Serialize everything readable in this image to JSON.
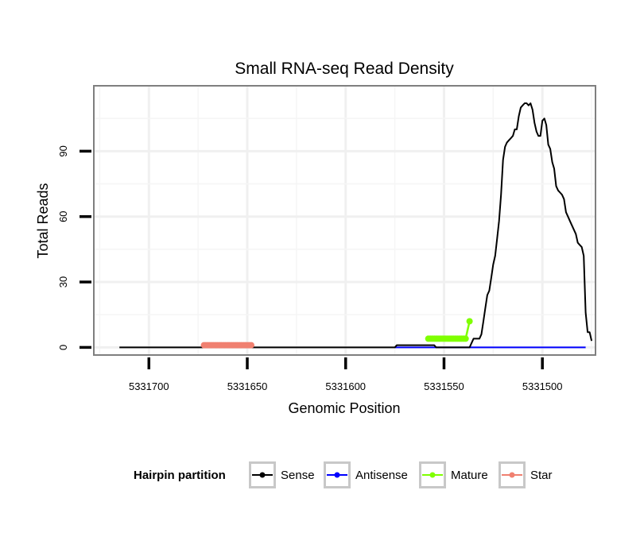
{
  "chart_data": {
    "type": "line",
    "title": "Small RNA-seq Read Density",
    "xlabel": "Genomic Position",
    "ylabel": "Total Reads",
    "x_reversed": true,
    "xlim": [
      5331728,
      5331473
    ],
    "ylim": [
      -3.5,
      120
    ],
    "x_ticks": [
      5331700,
      5331650,
      5331600,
      5331550,
      5331500
    ],
    "x_tick_labels": [
      "5331700",
      "5331650",
      "5331600",
      "5331550",
      "5331500"
    ],
    "y_ticks": [
      0,
      30,
      60,
      90
    ],
    "y_tick_labels": [
      "0",
      "30",
      "60",
      "90"
    ],
    "grid": true,
    "legend": {
      "title": "Hairpin partition",
      "position": "bottom",
      "entries": [
        {
          "name": "Sense",
          "color": "#000000"
        },
        {
          "name": "Antisense",
          "color": "#0000ff"
        },
        {
          "name": "Mature",
          "color": "#7fff00"
        },
        {
          "name": "Star",
          "color": "#f08070"
        }
      ]
    },
    "series": [
      {
        "name": "Sense",
        "color": "#000000",
        "style": "line",
        "x": [
          5331715,
          5331575,
          5331574,
          5331555,
          5331554,
          5331540,
          5331537,
          5331536,
          5331535,
          5331532,
          5331531,
          5331530,
          5331529,
          5331528,
          5331527,
          5331526,
          5331525,
          5331524,
          5331523,
          5331522,
          5331521,
          5331520,
          5331519,
          5331518,
          5331517,
          5331516,
          5331515,
          5331514,
          5331513,
          5331512,
          5331511,
          5331510,
          5331509,
          5331508,
          5331507,
          5331506,
          5331505,
          5331504,
          5331503,
          5331502,
          5331501,
          5331500,
          5331499,
          5331498,
          5331497,
          5331496,
          5331495,
          5331494,
          5331493,
          5331492,
          5331491,
          5331490,
          5331489,
          5331488,
          5331487,
          5331486,
          5331485,
          5331484,
          5331483,
          5331482,
          5331481,
          5331480,
          5331479,
          5331478,
          5331477,
          5331476,
          5331475
        ],
        "y": [
          0,
          0,
          1,
          1,
          0,
          0,
          0,
          2,
          4,
          4,
          6,
          12,
          18,
          24,
          26,
          32,
          38,
          42,
          50,
          58,
          70,
          86,
          92,
          94,
          95,
          96,
          97,
          100,
          100,
          106,
          110,
          111,
          112,
          112,
          111,
          112,
          109,
          103,
          99,
          97,
          97,
          104,
          105,
          102,
          93,
          91,
          85,
          82,
          74,
          72,
          71,
          70,
          68,
          62,
          60,
          58,
          56,
          54,
          52,
          48,
          47,
          46,
          42,
          16,
          7,
          7,
          3
        ]
      },
      {
        "name": "Antisense",
        "color": "#0000ff",
        "style": "line",
        "x": [
          5331575,
          5331478
        ],
        "y": [
          0,
          0
        ]
      },
      {
        "name": "Mature",
        "color": "#7fff00",
        "style": "points",
        "x": [
          5331558,
          5331557,
          5331556,
          5331555,
          5331554,
          5331553,
          5331552,
          5331551,
          5331550,
          5331549,
          5331548,
          5331547,
          5331546,
          5331545,
          5331544,
          5331543,
          5331542,
          5331541,
          5331540,
          5331539,
          5331537
        ],
        "y": [
          4,
          4,
          4,
          4,
          4,
          4,
          4,
          4,
          4,
          4,
          4,
          4,
          4,
          4,
          4,
          4,
          4,
          4,
          4,
          4,
          12
        ]
      },
      {
        "name": "Star",
        "color": "#f08070",
        "style": "points",
        "x": [
          5331672,
          5331671,
          5331670,
          5331669,
          5331668,
          5331667,
          5331666,
          5331665,
          5331664,
          5331663,
          5331662,
          5331661,
          5331660,
          5331659,
          5331658,
          5331657,
          5331656,
          5331655,
          5331654,
          5331653,
          5331652,
          5331651,
          5331650,
          5331649,
          5331648
        ],
        "y": [
          1,
          1,
          1,
          1,
          1,
          1,
          1,
          1,
          1,
          1,
          1,
          1,
          1,
          1,
          1,
          1,
          1,
          1,
          1,
          1,
          1,
          1,
          1,
          1,
          1
        ]
      }
    ]
  }
}
